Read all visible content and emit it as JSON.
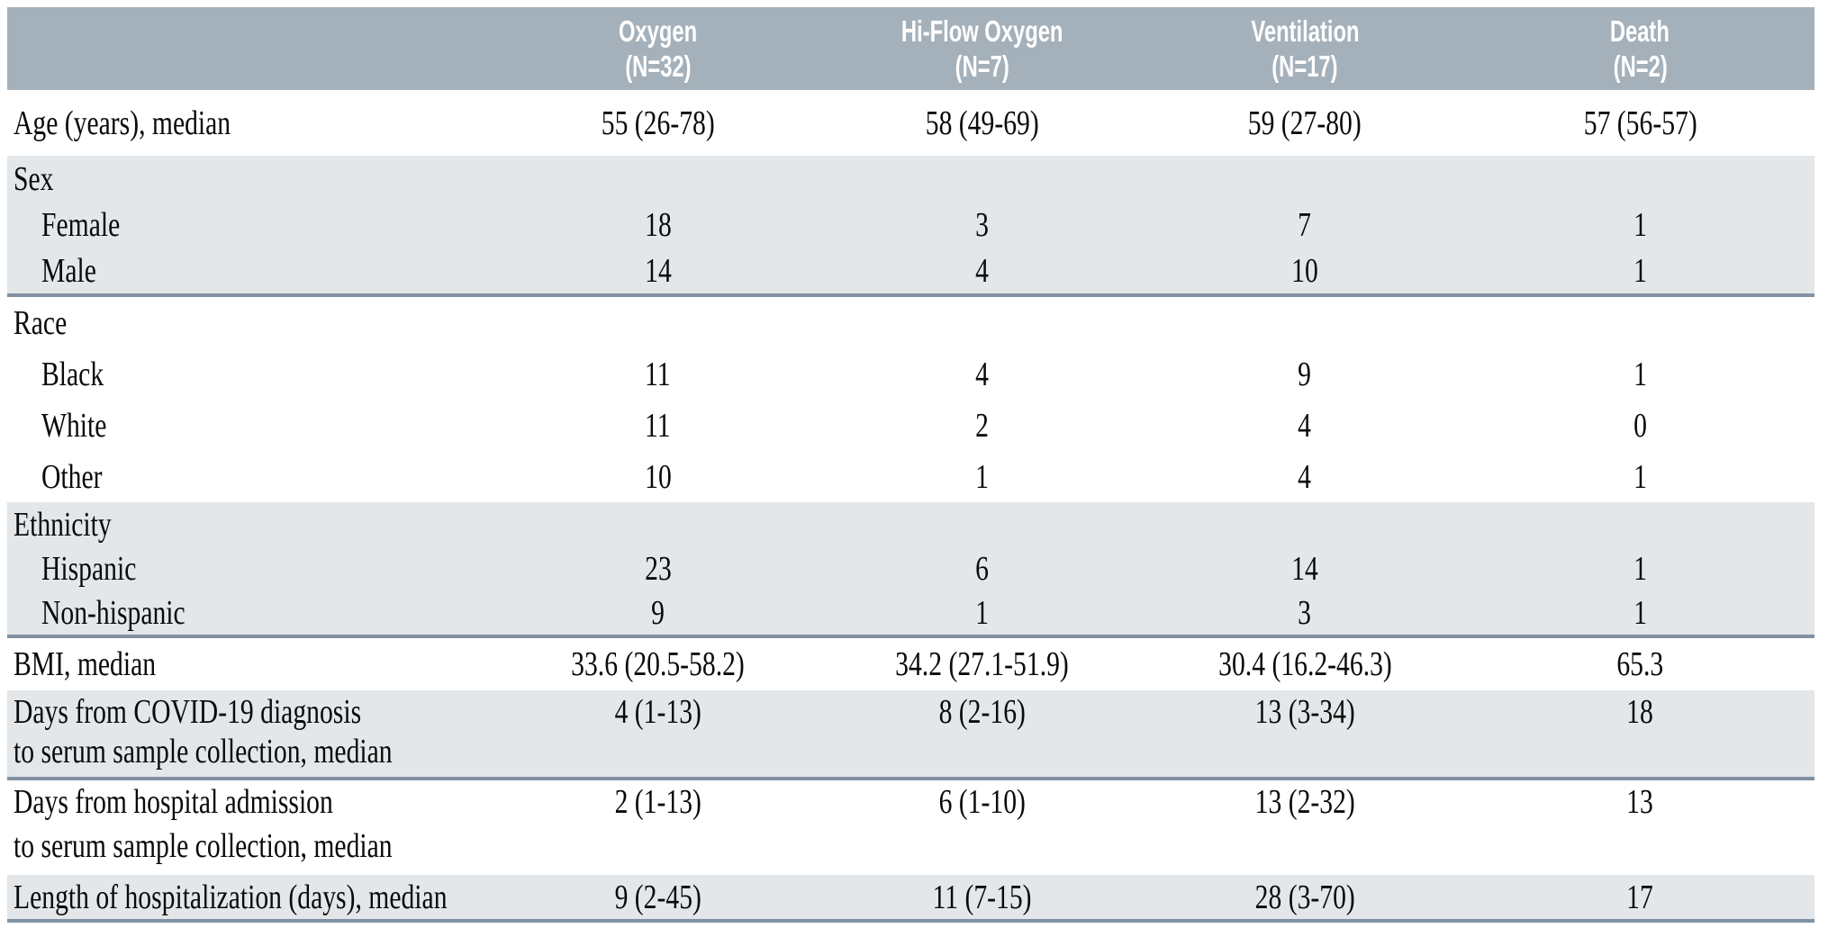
{
  "colors": {
    "header_bg": "#a5b1ba",
    "header_text": "#ffffff",
    "shaded_band_bg": "#e4e7e9",
    "divider": "#8191a1",
    "body_text": "#0a0a0a",
    "page_bg": "#ffffff"
  },
  "table": {
    "header": {
      "label_column": "",
      "columns": [
        {
          "title": "Oxygen",
          "n": "(N=32)"
        },
        {
          "title": "Hi-Flow Oxygen",
          "n": "(N=7)"
        },
        {
          "title": "Ventilation",
          "n": "(N=17)"
        },
        {
          "title": "Death",
          "n": "(N=2)"
        }
      ]
    },
    "sections": [
      {
        "shaded": false,
        "rows": [
          {
            "label": [
              "Age (years), median"
            ],
            "indent": false,
            "values": [
              "55 (26-78)",
              "58 (49-69)",
              "59 (27-80)",
              "57 (56-57)"
            ]
          }
        ]
      },
      {
        "shaded": true,
        "rows": [
          {
            "label": [
              "Sex"
            ],
            "indent": false,
            "values": [
              "",
              "",
              "",
              ""
            ]
          },
          {
            "label": [
              "Female"
            ],
            "indent": true,
            "values": [
              "18",
              "3",
              "7",
              "1"
            ]
          },
          {
            "label": [
              "Male"
            ],
            "indent": true,
            "values": [
              "14",
              "4",
              "10",
              "1"
            ]
          }
        ]
      },
      {
        "shaded": false,
        "rows": [
          {
            "label": [
              "Race"
            ],
            "indent": false,
            "values": [
              "",
              "",
              "",
              ""
            ]
          },
          {
            "label": [
              "Black"
            ],
            "indent": true,
            "values": [
              "11",
              "4",
              "9",
              "1"
            ]
          },
          {
            "label": [
              "White"
            ],
            "indent": true,
            "values": [
              "11",
              "2",
              "4",
              "0"
            ]
          },
          {
            "label": [
              "Other"
            ],
            "indent": true,
            "values": [
              "10",
              "1",
              "4",
              "1"
            ]
          }
        ]
      },
      {
        "shaded": true,
        "rows": [
          {
            "label": [
              "Ethnicity"
            ],
            "indent": false,
            "values": [
              "",
              "",
              "",
              ""
            ]
          },
          {
            "label": [
              "Hispanic"
            ],
            "indent": true,
            "values": [
              "23",
              "6",
              "14",
              "1"
            ]
          },
          {
            "label": [
              "Non-hispanic"
            ],
            "indent": true,
            "values": [
              "9",
              "1",
              "3",
              "1"
            ]
          }
        ]
      },
      {
        "shaded": false,
        "rows": [
          {
            "label": [
              "BMI, median"
            ],
            "indent": false,
            "values": [
              "33.6 (20.5-58.2)",
              "34.2 (27.1-51.9)",
              "30.4 (16.2-46.3)",
              "65.3"
            ]
          }
        ]
      },
      {
        "shaded": true,
        "rows": [
          {
            "label": [
              "Days from COVID-19 diagnosis",
              "to serum sample collection, median"
            ],
            "indent": false,
            "values": [
              "4 (1-13)",
              "8 (2-16)",
              "13 (3-34)",
              "18"
            ]
          }
        ]
      },
      {
        "shaded": false,
        "rows": [
          {
            "label": [
              "Days from hospital admission",
              "to serum sample collection, median"
            ],
            "indent": false,
            "values": [
              "2 (1-13)",
              "6 (1-10)",
              "13 (2-32)",
              "13"
            ]
          }
        ]
      },
      {
        "shaded": true,
        "rows": [
          {
            "label": [
              "Length of hospitalization (days), median"
            ],
            "indent": false,
            "values": [
              "9 (2-45)",
              "11 (7-15)",
              "28 (3-70)",
              "17"
            ]
          }
        ]
      }
    ]
  }
}
